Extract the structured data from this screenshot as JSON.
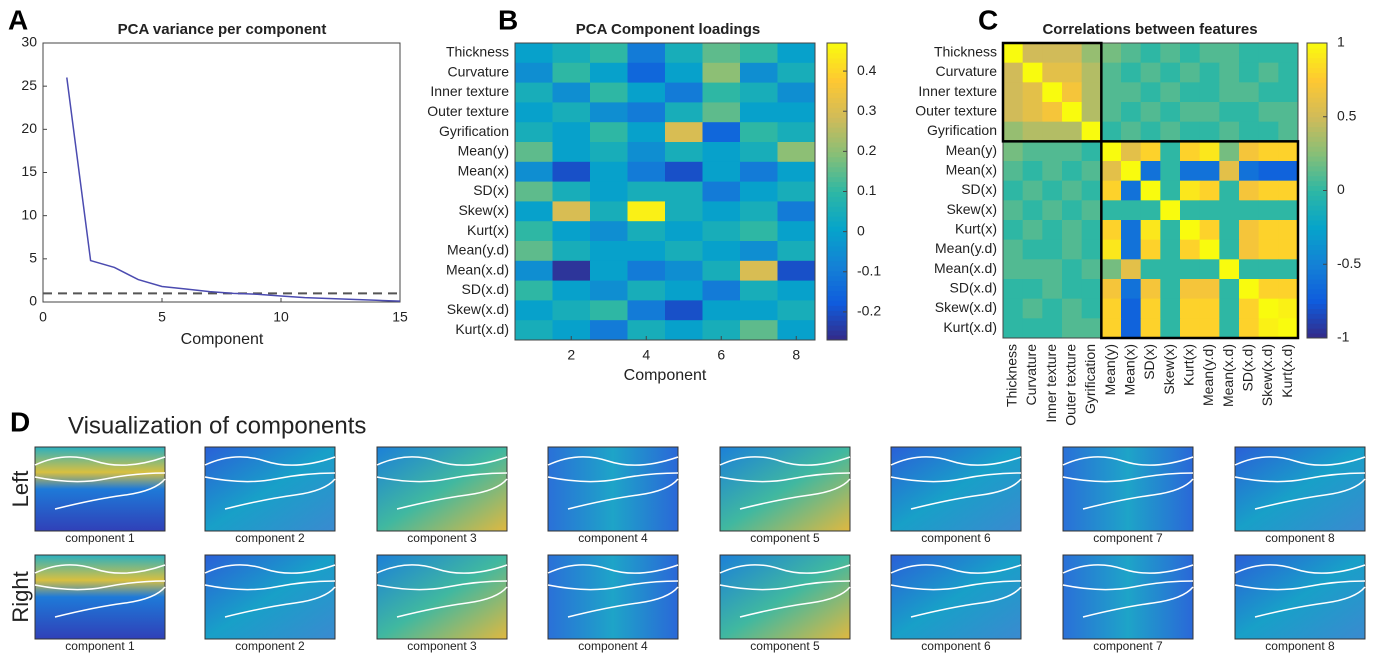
{
  "chart_data": [
    {
      "type": "line",
      "label": "A",
      "title": "PCA variance per component",
      "xlabel": "Component",
      "x": [
        1,
        2,
        3,
        4,
        5,
        6,
        7,
        8,
        9,
        10,
        11,
        12,
        13,
        14,
        15
      ],
      "values": [
        26,
        4.8,
        4.0,
        2.6,
        1.8,
        1.5,
        1.2,
        1.0,
        0.9,
        0.7,
        0.5,
        0.4,
        0.3,
        0.2,
        0.1
      ],
      "color": "#4b4bb0",
      "reference_line": 1,
      "xlim": [
        0,
        15
      ],
      "xticks": [
        0,
        5,
        10,
        15
      ],
      "ylim": [
        0,
        30
      ],
      "yticks": [
        0,
        5,
        10,
        15,
        20,
        25,
        30
      ]
    },
    {
      "type": "heatmap",
      "label": "B",
      "title": "PCA Component loadings",
      "xlabel": "Component",
      "colormap": "parula",
      "y_categories": [
        "Thickness",
        "Curvature",
        "Inner texture",
        "Outer texture",
        "Gyrification",
        "Mean(y)",
        "Mean(x)",
        "SD(x)",
        "Skew(x)",
        "Kurt(x)",
        "Mean(y.d)",
        "Mean(x.d)",
        "SD(x.d)",
        "Skew(x.d)",
        "Kurt(x.d)"
      ],
      "xlim": [
        0.5,
        8.5
      ],
      "xticks": [
        2,
        4,
        6,
        8
      ],
      "values": [
        [
          0.0,
          0.05,
          0.1,
          -0.1,
          0.05,
          0.15,
          0.1,
          0.0
        ],
        [
          -0.05,
          0.1,
          0.0,
          -0.15,
          0.0,
          0.2,
          -0.05,
          0.05
        ],
        [
          0.05,
          -0.05,
          0.1,
          0.0,
          -0.1,
          0.1,
          0.05,
          -0.05
        ],
        [
          0.0,
          0.05,
          -0.05,
          -0.1,
          0.05,
          0.15,
          0.0,
          0.0
        ],
        [
          0.05,
          0.0,
          0.1,
          0.0,
          0.3,
          -0.15,
          0.1,
          0.05
        ],
        [
          0.15,
          0.0,
          0.05,
          -0.05,
          0.05,
          0.0,
          0.05,
          0.2
        ],
        [
          -0.05,
          -0.2,
          0.0,
          -0.1,
          -0.2,
          0.0,
          -0.1,
          0.0
        ],
        [
          0.15,
          0.05,
          0.0,
          0.05,
          0.05,
          -0.1,
          0.0,
          0.05
        ],
        [
          0.0,
          0.3,
          0.05,
          0.45,
          0.05,
          0.0,
          0.05,
          -0.1
        ],
        [
          0.1,
          0.0,
          -0.05,
          0.05,
          0.0,
          0.05,
          0.1,
          0.0
        ],
        [
          0.15,
          0.05,
          0.0,
          0.0,
          0.05,
          0.0,
          -0.05,
          0.05
        ],
        [
          -0.05,
          -0.25,
          0.0,
          -0.1,
          -0.05,
          0.05,
          0.3,
          -0.2
        ],
        [
          0.1,
          0.0,
          -0.05,
          0.05,
          0.0,
          -0.1,
          0.05,
          0.0
        ],
        [
          0.0,
          0.05,
          0.1,
          -0.1,
          -0.2,
          0.0,
          0.0,
          0.05
        ],
        [
          0.05,
          0.0,
          -0.1,
          0.05,
          0.0,
          0.05,
          0.15,
          0.0
        ]
      ],
      "clim": [
        -0.27,
        0.47
      ],
      "cticks": [
        -0.2,
        -0.1,
        0,
        0.1,
        0.2,
        0.3,
        0.4
      ]
    },
    {
      "type": "matrix",
      "label": "C",
      "title": "Correlations between features",
      "colormap": "parula",
      "categories": [
        "Thickness",
        "Curvature",
        "Inner texture",
        "Outer texture",
        "Gyrification",
        "Mean(y)",
        "Mean(x)",
        "SD(x)",
        "Skew(x)",
        "Kurt(x)",
        "Mean(y.d)",
        "Mean(x.d)",
        "SD(x.d)",
        "Skew(x.d)",
        "Kurt(x.d)"
      ],
      "group_sizes": [
        5,
        10
      ],
      "values": [
        [
          1,
          0.5,
          0.5,
          0.5,
          0.3,
          0.2,
          0.1,
          0.0,
          0.1,
          0.0,
          0.1,
          0.1,
          0.0,
          0.0,
          0.0
        ],
        [
          0.5,
          1,
          0.6,
          0.6,
          0.4,
          0.1,
          0.0,
          0.1,
          0.0,
          0.1,
          0.0,
          0.1,
          0.0,
          0.1,
          0.0
        ],
        [
          0.5,
          0.6,
          1,
          0.7,
          0.4,
          0.1,
          0.1,
          0.0,
          0.1,
          0.0,
          0.0,
          0.1,
          0.1,
          0.0,
          0.0
        ],
        [
          0.5,
          0.6,
          0.7,
          1,
          0.4,
          0.1,
          0.0,
          0.1,
          0.0,
          0.1,
          0.1,
          0.0,
          0.0,
          0.1,
          0.1
        ],
        [
          0.3,
          0.4,
          0.4,
          0.4,
          1,
          0.0,
          0.1,
          0.0,
          0.1,
          0.0,
          0.0,
          0.1,
          0.0,
          0.0,
          0.1
        ],
        [
          0.2,
          0.1,
          0.1,
          0.1,
          0.0,
          1,
          0.6,
          0.8,
          0.0,
          0.8,
          0.9,
          0.2,
          0.7,
          0.8,
          0.8
        ],
        [
          0.1,
          0.0,
          0.1,
          0.0,
          0.1,
          0.6,
          1,
          -0.6,
          0.0,
          -0.6,
          -0.6,
          0.6,
          -0.6,
          -0.7,
          -0.7
        ],
        [
          0.0,
          0.1,
          0.0,
          0.1,
          0.0,
          0.8,
          -0.6,
          1,
          0.0,
          0.9,
          0.8,
          0.0,
          0.7,
          0.8,
          0.8
        ],
        [
          0.1,
          0.0,
          0.1,
          0.0,
          0.1,
          0.0,
          0.0,
          0.0,
          1,
          0.0,
          0.0,
          0.0,
          0.0,
          0.0,
          0.0
        ],
        [
          0.0,
          0.1,
          0.0,
          0.1,
          0.0,
          0.8,
          -0.6,
          0.9,
          0.0,
          1,
          0.8,
          0.0,
          0.7,
          0.8,
          0.8
        ],
        [
          0.1,
          0.0,
          0.0,
          0.1,
          0.0,
          0.9,
          -0.6,
          0.8,
          0.0,
          0.8,
          1,
          0.0,
          0.7,
          0.8,
          0.8
        ],
        [
          0.1,
          0.1,
          0.1,
          0.0,
          0.1,
          0.2,
          0.6,
          0.0,
          0.0,
          0.0,
          0.0,
          1,
          0.0,
          0.0,
          0.0
        ],
        [
          0.0,
          0.0,
          0.1,
          0.0,
          0.0,
          0.7,
          -0.6,
          0.7,
          0.0,
          0.7,
          0.7,
          0.0,
          1,
          0.8,
          0.8
        ],
        [
          0.0,
          0.1,
          0.0,
          0.1,
          0.0,
          0.8,
          -0.7,
          0.8,
          0.0,
          0.8,
          0.8,
          0.0,
          0.8,
          1,
          0.95
        ],
        [
          0.0,
          0.0,
          0.0,
          0.1,
          0.1,
          0.8,
          -0.7,
          0.8,
          0.0,
          0.8,
          0.8,
          0.0,
          0.8,
          0.95,
          1
        ]
      ],
      "clim": [
        -1,
        1
      ],
      "cticks": [
        -1,
        -0.5,
        0,
        0.5,
        1
      ]
    }
  ],
  "panel_d": {
    "label": "D",
    "title": "Visualization of components",
    "rows": [
      {
        "label": "Left",
        "captions": [
          "component 1",
          "component 2",
          "component 3",
          "component 4",
          "component 5",
          "component 6",
          "component 7",
          "component 8"
        ]
      },
      {
        "label": "Right",
        "captions": [
          "component 1",
          "component 2",
          "component 3",
          "component 4",
          "component 5",
          "component 6",
          "component 7",
          "component 8"
        ]
      }
    ]
  }
}
